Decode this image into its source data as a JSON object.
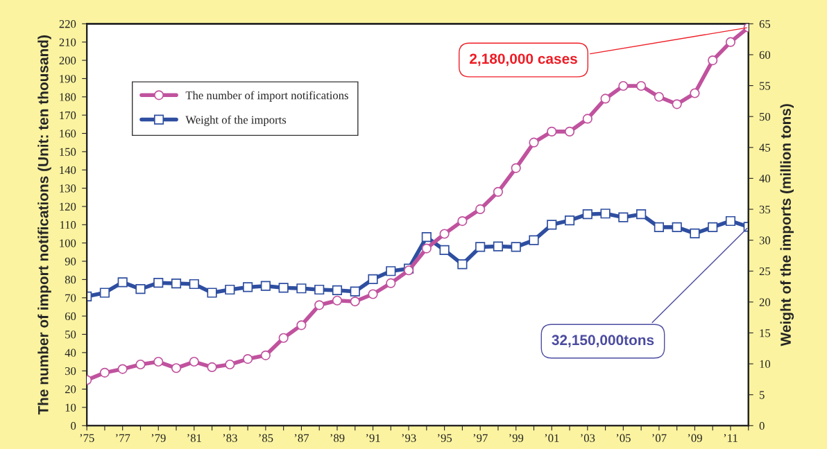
{
  "chart_data": {
    "type": "line",
    "ylabel": "The number of import notifications (Unit: ten thousand)",
    "y2label": "Weight of the imports (million tons)",
    "x": [
      1975,
      1976,
      1977,
      1978,
      1979,
      1980,
      1981,
      1982,
      1983,
      1984,
      1985,
      1986,
      1987,
      1988,
      1989,
      1990,
      1991,
      1992,
      1993,
      1994,
      1995,
      1996,
      1997,
      1998,
      1999,
      2000,
      2001,
      2002,
      2003,
      2004,
      2005,
      2006,
      2007,
      2008,
      2009,
      2010,
      2011,
      2012
    ],
    "series": [
      {
        "name": "The number of import notifications",
        "color": "#c0529e",
        "marker": "circle",
        "values": [
          25,
          29,
          31,
          33.5,
          35,
          31.5,
          35,
          32,
          33.5,
          36.5,
          38.5,
          48,
          55,
          66,
          68.5,
          68,
          72,
          78,
          85,
          97,
          105,
          112,
          118.5,
          128,
          141,
          155,
          161,
          161,
          168,
          179,
          186,
          186,
          180,
          176,
          182,
          200,
          210,
          218
        ]
      },
      {
        "name": "Weight of the imports",
        "color": "#2e4ea0",
        "marker": "square",
        "axis": "y2",
        "values": [
          20.9,
          21.5,
          23.2,
          22.1,
          23.1,
          23.0,
          22.9,
          21.5,
          22.0,
          22.4,
          22.6,
          22.3,
          22.2,
          22.0,
          21.9,
          21.7,
          23.7,
          25.0,
          25.4,
          30.5,
          28.4,
          26.1,
          28.9,
          29.0,
          28.9,
          30.0,
          32.5,
          33.2,
          34.2,
          34.3,
          33.7,
          34.2,
          32.1,
          32.1,
          31.1,
          32.1,
          33.1,
          32.15
        ]
      }
    ],
    "xlim": [
      1975,
      2012
    ],
    "xticks": [
      {
        "value": 1975,
        "label": "’75"
      },
      {
        "value": 1976,
        "label": null
      },
      {
        "value": 1977,
        "label": "’77"
      },
      {
        "value": 1978,
        "label": null
      },
      {
        "value": 1979,
        "label": "’79"
      },
      {
        "value": 1980,
        "label": null
      },
      {
        "value": 1981,
        "label": "’81"
      },
      {
        "value": 1982,
        "label": null
      },
      {
        "value": 1983,
        "label": "’83"
      },
      {
        "value": 1984,
        "label": null
      },
      {
        "value": 1985,
        "label": "’85"
      },
      {
        "value": 1986,
        "label": null
      },
      {
        "value": 1987,
        "label": "’87"
      },
      {
        "value": 1988,
        "label": null
      },
      {
        "value": 1989,
        "label": "’89"
      },
      {
        "value": 1990,
        "label": null
      },
      {
        "value": 1991,
        "label": "’91"
      },
      {
        "value": 1992,
        "label": null
      },
      {
        "value": 1993,
        "label": "’93"
      },
      {
        "value": 1994,
        "label": null
      },
      {
        "value": 1995,
        "label": "’95"
      },
      {
        "value": 1996,
        "label": null
      },
      {
        "value": 1997,
        "label": "’97"
      },
      {
        "value": 1998,
        "label": null
      },
      {
        "value": 1999,
        "label": "’99"
      },
      {
        "value": 2000,
        "label": null
      },
      {
        "value": 2001,
        "label": "’01"
      },
      {
        "value": 2002,
        "label": null
      },
      {
        "value": 2003,
        "label": "’03"
      },
      {
        "value": 2004,
        "label": null
      },
      {
        "value": 2005,
        "label": "’05"
      },
      {
        "value": 2006,
        "label": null
      },
      {
        "value": 2007,
        "label": "’07"
      },
      {
        "value": 2008,
        "label": null
      },
      {
        "value": 2009,
        "label": "’09"
      },
      {
        "value": 2010,
        "label": null
      },
      {
        "value": 2011,
        "label": "’11"
      },
      {
        "value": 2012,
        "label": null
      }
    ],
    "ylim": [
      0,
      220
    ],
    "yticks": [
      0,
      10,
      20,
      30,
      40,
      50,
      60,
      70,
      80,
      90,
      100,
      110,
      120,
      130,
      140,
      150,
      160,
      170,
      180,
      190,
      200,
      210,
      220
    ],
    "y2lim": [
      0,
      65
    ],
    "y2ticks": [
      0,
      5,
      10,
      15,
      20,
      25,
      30,
      35,
      40,
      45,
      50,
      55,
      60,
      65
    ],
    "annotations": [
      {
        "text": "2,180,000 cases",
        "x": 2012,
        "y": 218
      },
      {
        "text": "32,150,000tons",
        "x": 2012,
        "y": 108.8
      }
    ],
    "grid": false,
    "legend": "top left",
    "line_style": "solid"
  }
}
